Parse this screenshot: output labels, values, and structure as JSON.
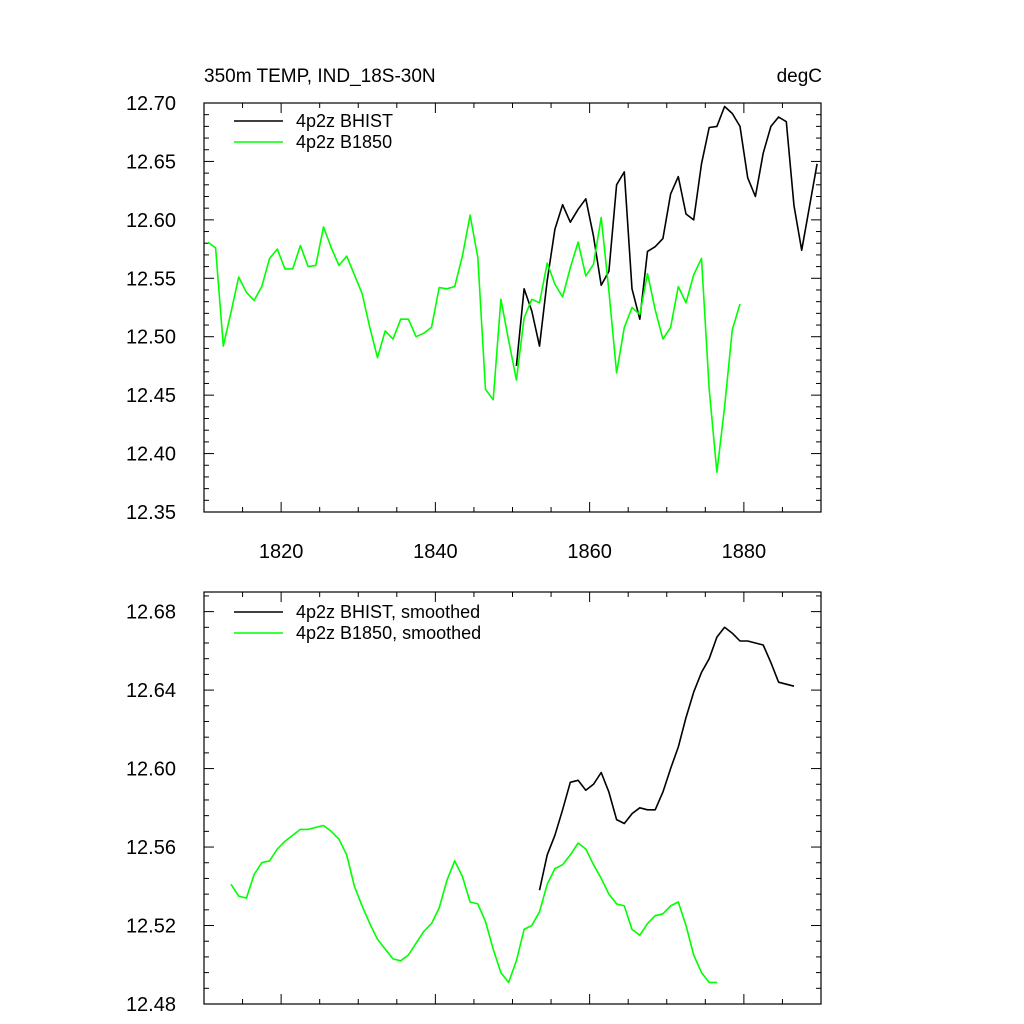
{
  "chart_data": [
    {
      "type": "line",
      "title": "350m TEMP, IND_18S-30N",
      "units": "degC",
      "xlim": [
        1810,
        1890
      ],
      "ylim": [
        12.35,
        12.7
      ],
      "xticks": [
        1820,
        1840,
        1860,
        1880
      ],
      "xtick_labels": [
        "1820",
        "1840",
        "1860",
        "1880"
      ],
      "yticks": [
        12.35,
        12.4,
        12.45,
        12.5,
        12.55,
        12.6,
        12.65,
        12.7
      ],
      "ytick_labels": [
        "12.35",
        "12.40",
        "12.45",
        "12.50",
        "12.55",
        "12.60",
        "12.65",
        "12.70"
      ],
      "legend_position": "top-left",
      "grid": false,
      "series": [
        {
          "name": "4p2z BHIST",
          "color": "#000000",
          "x": [
            1850.5,
            1851.5,
            1852.5,
            1853.5,
            1854.5,
            1855.5,
            1856.5,
            1857.5,
            1858.5,
            1859.5,
            1860.5,
            1861.5,
            1862.5,
            1863.5,
            1864.5,
            1865.5,
            1866.5,
            1867.5,
            1868.5,
            1869.5,
            1870.5,
            1871.5,
            1872.5,
            1873.5,
            1874.5,
            1875.5,
            1876.5,
            1877.5,
            1878.5,
            1879.5,
            1880.5,
            1881.5,
            1882.5,
            1883.5,
            1884.5,
            1885.5,
            1886.5,
            1887.5,
            1888.5,
            1889.5
          ],
          "y": [
            12.475,
            12.541,
            12.522,
            12.492,
            12.548,
            12.592,
            12.613,
            12.598,
            12.609,
            12.618,
            12.586,
            12.544,
            12.556,
            12.63,
            12.641,
            12.541,
            12.515,
            12.573,
            12.577,
            12.584,
            12.622,
            12.637,
            12.605,
            12.6,
            12.648,
            12.679,
            12.68,
            12.697,
            12.691,
            12.68,
            12.636,
            12.62,
            12.657,
            12.68,
            12.688,
            12.684,
            12.612,
            12.574,
            12.611,
            12.648
          ]
        },
        {
          "name": "4p2z B1850",
          "color": "#00ff00",
          "x": [
            1810.5,
            1811.5,
            1812.5,
            1813.5,
            1814.5,
            1815.5,
            1816.5,
            1817.5,
            1818.5,
            1819.5,
            1820.5,
            1821.5,
            1822.5,
            1823.5,
            1824.5,
            1825.5,
            1826.5,
            1827.5,
            1828.5,
            1829.5,
            1830.5,
            1831.5,
            1832.5,
            1833.5,
            1834.5,
            1835.5,
            1836.5,
            1837.5,
            1838.5,
            1839.5,
            1840.5,
            1841.5,
            1842.5,
            1843.5,
            1844.5,
            1845.5,
            1846.5,
            1847.5,
            1848.5,
            1849.5,
            1850.5,
            1851.5,
            1852.5,
            1853.5,
            1854.5,
            1855.5,
            1856.5,
            1857.5,
            1858.5,
            1859.5,
            1860.5,
            1861.5,
            1862.5,
            1863.5,
            1864.5,
            1865.5,
            1866.5,
            1867.5,
            1868.5,
            1869.5,
            1870.5,
            1871.5,
            1872.5,
            1873.5,
            1874.5,
            1875.5,
            1876.5,
            1877.5,
            1878.5,
            1879.5
          ],
          "y": [
            12.581,
            12.576,
            12.492,
            12.521,
            12.551,
            12.538,
            12.531,
            12.543,
            12.567,
            12.575,
            12.558,
            12.558,
            12.578,
            12.56,
            12.561,
            12.594,
            12.576,
            12.561,
            12.569,
            12.553,
            12.537,
            12.508,
            12.482,
            12.505,
            12.498,
            12.515,
            12.515,
            12.5,
            12.503,
            12.508,
            12.542,
            12.541,
            12.543,
            12.569,
            12.604,
            12.568,
            12.455,
            12.446,
            12.532,
            12.497,
            12.463,
            12.516,
            12.532,
            12.529,
            12.563,
            12.545,
            12.534,
            12.559,
            12.581,
            12.552,
            12.562,
            12.602,
            12.539,
            12.469,
            12.508,
            12.525,
            12.519,
            12.554,
            12.523,
            12.498,
            12.508,
            12.543,
            12.529,
            12.553,
            12.567,
            12.455,
            12.384,
            12.44,
            12.506,
            12.528
          ]
        }
      ]
    },
    {
      "type": "line",
      "xlim": [
        1810,
        1890
      ],
      "ylim": [
        12.48,
        12.69
      ],
      "xticks": [
        1820,
        1840,
        1860,
        1880
      ],
      "yticks": [
        12.48,
        12.52,
        12.56,
        12.6,
        12.64,
        12.68
      ],
      "ytick_labels": [
        "12.48",
        "12.52",
        "12.56",
        "12.60",
        "12.64",
        "12.68"
      ],
      "legend_position": "top-left",
      "grid": false,
      "series": [
        {
          "name": "4p2z BHIST, smoothed",
          "color": "#000000",
          "x": [
            1853.5,
            1854.5,
            1855.5,
            1856.5,
            1857.5,
            1858.5,
            1859.5,
            1860.5,
            1861.5,
            1862.5,
            1863.5,
            1864.5,
            1865.5,
            1866.5,
            1867.5,
            1868.5,
            1869.5,
            1870.5,
            1871.5,
            1872.5,
            1873.5,
            1874.5,
            1875.5,
            1876.5,
            1877.5,
            1878.5,
            1879.5,
            1880.5,
            1881.5,
            1882.5,
            1883.5,
            1884.5,
            1885.5,
            1886.5
          ],
          "y": [
            12.538,
            12.556,
            12.566,
            12.579,
            12.593,
            12.594,
            12.589,
            12.592,
            12.598,
            12.588,
            12.574,
            12.572,
            12.577,
            12.58,
            12.579,
            12.579,
            12.588,
            12.6,
            12.611,
            12.626,
            12.639,
            12.649,
            12.656,
            12.667,
            12.672,
            12.669,
            12.665,
            12.665,
            12.664,
            12.663,
            12.654,
            12.644,
            12.643,
            12.642
          ]
        },
        {
          "name": "4p2z B1850, smoothed",
          "color": "#00ff00",
          "x": [
            1813.5,
            1814.5,
            1815.5,
            1816.5,
            1817.5,
            1818.5,
            1819.5,
            1820.5,
            1821.5,
            1822.5,
            1823.5,
            1824.5,
            1825.5,
            1826.5,
            1827.5,
            1828.5,
            1829.5,
            1830.5,
            1831.5,
            1832.5,
            1833.5,
            1834.5,
            1835.5,
            1836.5,
            1837.5,
            1838.5,
            1839.5,
            1840.5,
            1841.5,
            1842.5,
            1843.5,
            1844.5,
            1845.5,
            1846.5,
            1847.5,
            1848.5,
            1849.5,
            1850.5,
            1851.5,
            1852.5,
            1853.5,
            1854.5,
            1855.5,
            1856.5,
            1857.5,
            1858.5,
            1859.5,
            1860.5,
            1861.5,
            1862.5,
            1863.5,
            1864.5,
            1865.5,
            1866.5,
            1867.5,
            1868.5,
            1869.5,
            1870.5,
            1871.5,
            1872.5,
            1873.5,
            1874.5,
            1875.5,
            1876.5
          ],
          "y": [
            12.541,
            12.535,
            12.534,
            12.546,
            12.552,
            12.553,
            12.559,
            12.563,
            12.566,
            12.569,
            12.569,
            12.57,
            12.571,
            12.568,
            12.564,
            12.556,
            12.54,
            12.53,
            12.521,
            12.513,
            12.508,
            12.503,
            12.502,
            12.505,
            12.511,
            12.517,
            12.521,
            12.529,
            12.543,
            12.553,
            12.545,
            12.532,
            12.531,
            12.522,
            12.508,
            12.496,
            12.491,
            12.502,
            12.518,
            12.52,
            12.527,
            12.541,
            12.549,
            12.551,
            12.556,
            12.562,
            12.559,
            12.551,
            12.544,
            12.536,
            12.531,
            12.53,
            12.518,
            12.515,
            12.521,
            12.525,
            12.526,
            12.53,
            12.532,
            12.52,
            12.505,
            12.496,
            12.491,
            12.491
          ]
        }
      ]
    }
  ]
}
